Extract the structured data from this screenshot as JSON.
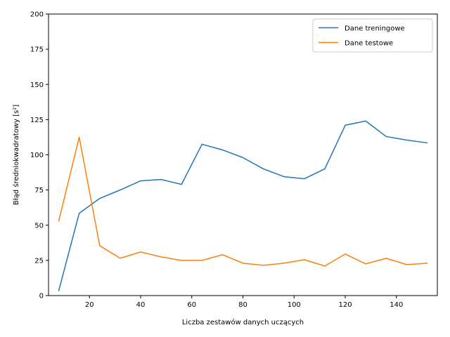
{
  "chart_data": {
    "type": "line",
    "xlabel": "Liczba zestawów danych uczących",
    "ylabel": "Błąd średniokwadratowy [s²]",
    "xlim": [
      4,
      156
    ],
    "ylim": [
      0,
      200
    ],
    "xticks": [
      20,
      40,
      60,
      80,
      100,
      120,
      140
    ],
    "yticks": [
      0,
      25,
      50,
      75,
      100,
      125,
      150,
      175,
      200
    ],
    "legend_position": "top-right",
    "grid": false,
    "x": [
      8,
      16,
      24,
      32,
      40,
      48,
      56,
      64,
      72,
      80,
      88,
      96,
      104,
      112,
      120,
      128,
      136,
      144,
      152
    ],
    "series": [
      {
        "name": "Dane treningowe",
        "color": "#1f77b4",
        "values": [
          3.5,
          58.5,
          69,
          75,
          81.5,
          82.5,
          79,
          107.5,
          103.5,
          98,
          90,
          84.5,
          83,
          90,
          121,
          124,
          113,
          110.5,
          108.5
        ]
      },
      {
        "name": "Dane testowe",
        "color": "#ff7f0e",
        "values": [
          53,
          112.5,
          35.5,
          26.5,
          31,
          27.5,
          25,
          25,
          29,
          23,
          21.5,
          23,
          25.5,
          21,
          29.5,
          22.5,
          26.5,
          22,
          23
        ]
      }
    ]
  }
}
